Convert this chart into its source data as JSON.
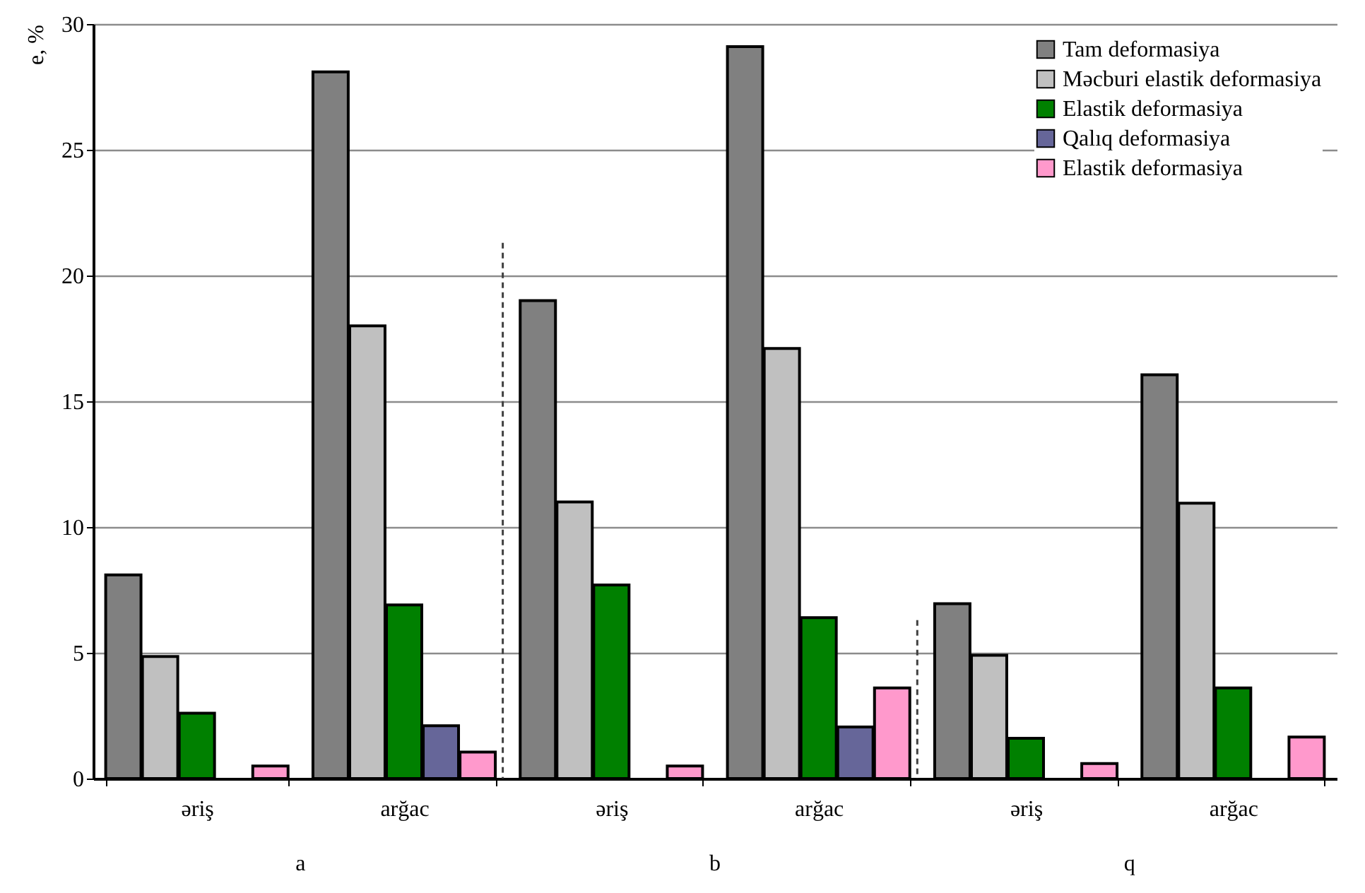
{
  "chart_data": {
    "type": "bar",
    "ylabel": "e, %",
    "categories": [
      "əriş",
      "arğac",
      "əriş",
      "arğac",
      "əriş",
      "arğac"
    ],
    "series": [
      {
        "name": "Tam deformasiya",
        "color": "#808080",
        "values": [
          8.1,
          28.1,
          19.0,
          29.1,
          6.95,
          16.05
        ]
      },
      {
        "name": "Məcburi elastik deformasiya",
        "color": "#c0c0c0",
        "values": [
          4.85,
          18.0,
          11.0,
          17.1,
          4.9,
          10.95
        ]
      },
      {
        "name": "Elastik deformasiya",
        "color": "#008000",
        "values": [
          2.6,
          6.9,
          7.7,
          6.4,
          1.6,
          3.6
        ]
      },
      {
        "name": "Qalıq deformasiya",
        "color": "#666699",
        "values": [
          null,
          2.1,
          null,
          2.05,
          null,
          null
        ]
      },
      {
        "name": "Elastik deformasiya",
        "color": "#ff99cc",
        "values": [
          0.5,
          1.05,
          0.5,
          3.6,
          0.6,
          1.65
        ]
      }
    ],
    "annotations": [
      "a",
      "b",
      "q"
    ],
    "ylim": [
      0,
      30
    ],
    "yticks": [
      0,
      5,
      10,
      15,
      20,
      25,
      30
    ],
    "grid": "y",
    "legend": "top right"
  }
}
